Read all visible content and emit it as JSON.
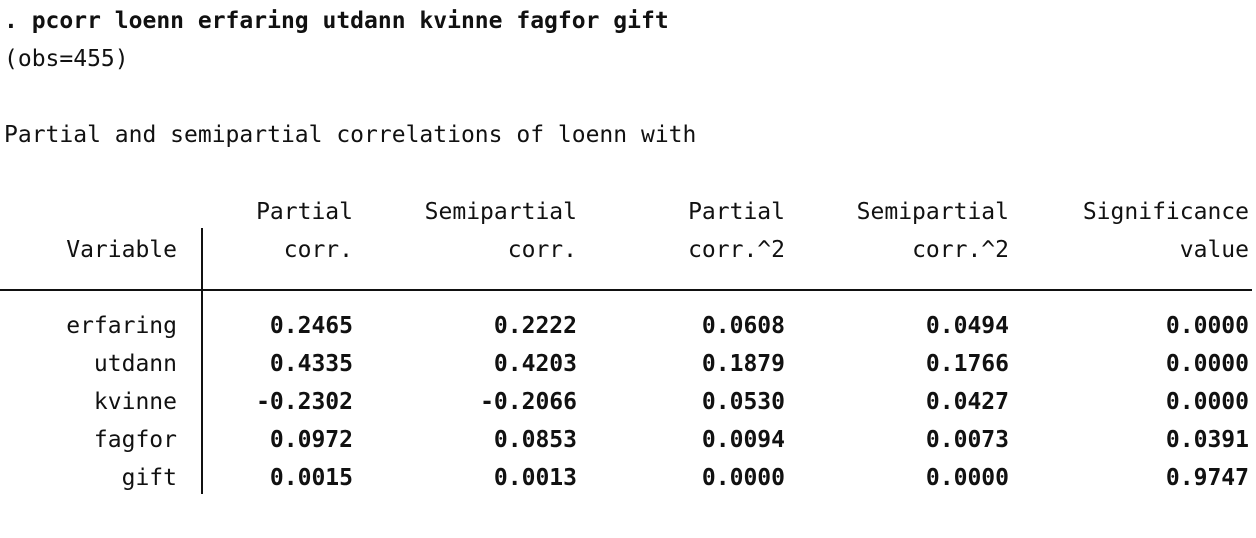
{
  "command": ". pcorr loenn erfaring utdann kvinne fagfor gift",
  "obs_line": "(obs=455)",
  "title": "Partial and semipartial correlations of loenn with",
  "headers": {
    "variable": "Variable",
    "col1": [
      "Partial",
      "corr."
    ],
    "col2": [
      "Semipartial",
      "corr."
    ],
    "col3": [
      "Partial",
      "corr.^2"
    ],
    "col4": [
      "Semipartial",
      "corr.^2"
    ],
    "col5": [
      "Significance",
      "value"
    ]
  },
  "rows": [
    {
      "variable": "erfaring",
      "values": [
        "0.2465",
        "0.2222",
        "0.0608",
        "0.0494",
        "0.0000"
      ]
    },
    {
      "variable": "utdann",
      "values": [
        "0.4335",
        "0.4203",
        "0.1879",
        "0.1766",
        "0.0000"
      ]
    },
    {
      "variable": "kvinne",
      "values": [
        "-0.2302",
        "-0.2066",
        "0.0530",
        "0.0427",
        "0.0000"
      ]
    },
    {
      "variable": "fagfor",
      "values": [
        "0.0972",
        "0.0853",
        "0.0094",
        "0.0073",
        "0.0391"
      ]
    },
    {
      "variable": "gift",
      "values": [
        "0.0015",
        "0.0013",
        "0.0000",
        "0.0000",
        "0.9747"
      ]
    }
  ]
}
